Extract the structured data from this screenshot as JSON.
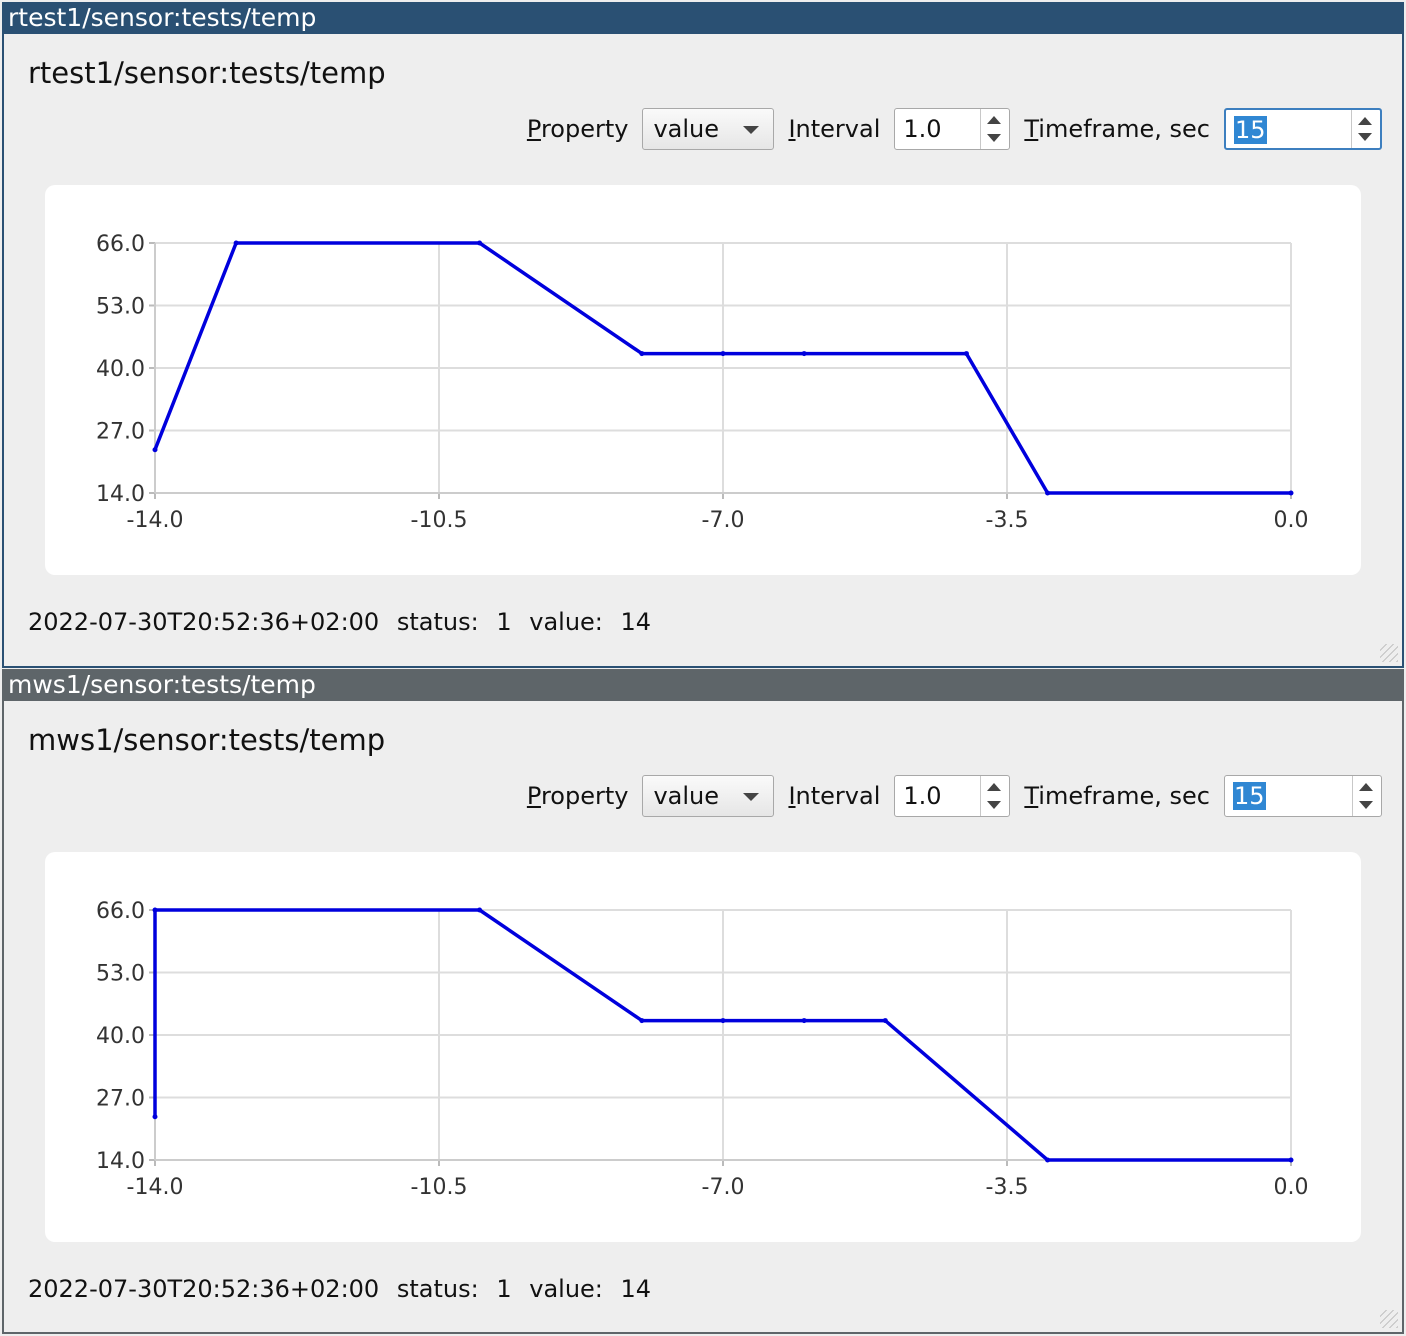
{
  "windows": [
    {
      "title": "rtest1/sensor:tests/temp",
      "heading": "rtest1/sensor:tests/temp",
      "controls": {
        "property_label": "Property",
        "property_value": "value",
        "interval_label": "Interval",
        "interval_value": "1.0",
        "timeframe_label": "Timeframe, sec",
        "timeframe_value": "15"
      },
      "status": {
        "timestamp": "2022-07-30T20:52:36+02:00",
        "status_label": "status:",
        "status_value": "1",
        "value_label": "value:",
        "value_value": "14"
      }
    },
    {
      "title": "mws1/sensor:tests/temp",
      "heading": "mws1/sensor:tests/temp",
      "controls": {
        "property_label": "Property",
        "property_value": "value",
        "interval_label": "Interval",
        "interval_value": "1.0",
        "timeframe_label": "Timeframe, sec",
        "timeframe_value": "15"
      },
      "status": {
        "timestamp": "2022-07-30T20:52:36+02:00",
        "status_label": "status:",
        "status_value": "1",
        "value_label": "value:",
        "value_value": "14"
      }
    }
  ],
  "chart_data": [
    {
      "type": "line",
      "line_color": "#0000dd",
      "xlim": [
        -14.0,
        0.0
      ],
      "ylim": [
        14.0,
        66.0
      ],
      "x_ticks": [
        "-14.0",
        "-10.5",
        "-7.0",
        "-3.5",
        "0.0"
      ],
      "y_ticks": [
        "14.0",
        "27.0",
        "40.0",
        "53.0",
        "66.0"
      ],
      "grid": true,
      "x": [
        -14.0,
        -13.0,
        -10.0,
        -8.0,
        -7.0,
        -6.0,
        -4.0,
        -3.0,
        0.0
      ],
      "y": [
        23,
        66,
        66,
        43,
        43,
        43,
        43,
        14,
        14
      ]
    },
    {
      "type": "line",
      "line_color": "#0000dd",
      "xlim": [
        -14.0,
        0.0
      ],
      "ylim": [
        14.0,
        66.0
      ],
      "x_ticks": [
        "-14.0",
        "-10.5",
        "-7.0",
        "-3.5",
        "0.0"
      ],
      "y_ticks": [
        "14.0",
        "27.0",
        "40.0",
        "53.0",
        "66.0"
      ],
      "grid": true,
      "x": [
        -14.0,
        -14.0,
        -10.0,
        -8.0,
        -7.0,
        -6.0,
        -5.0,
        -3.0,
        0.0
      ],
      "y": [
        23,
        66,
        66,
        43,
        43,
        43,
        43,
        14,
        14
      ]
    }
  ]
}
